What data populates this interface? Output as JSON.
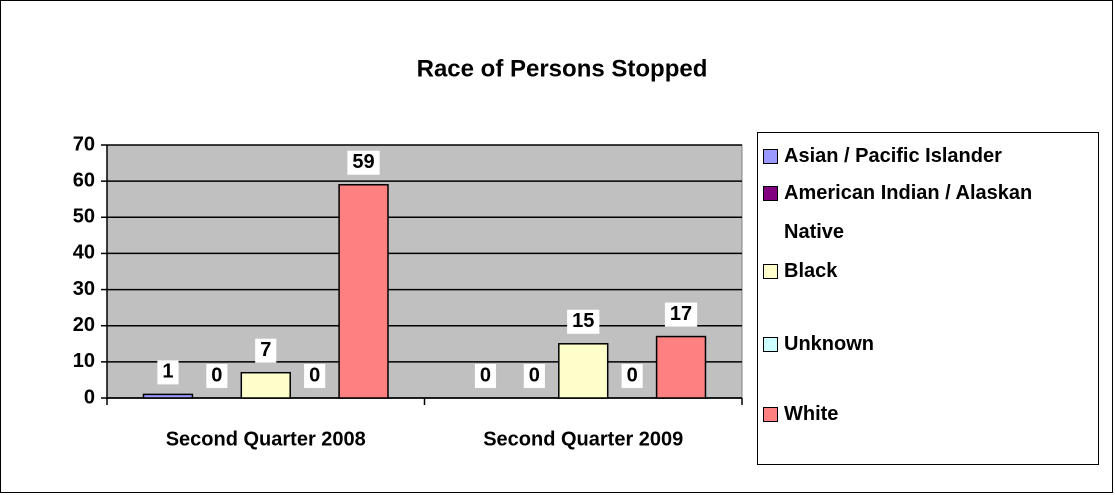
{
  "chart_data": {
    "type": "bar",
    "title": "Race of Persons Stopped",
    "categories": [
      "Second Quarter 2008",
      "Second Quarter 2009"
    ],
    "series": [
      {
        "name": "Asian / Pacific Islander",
        "color": "#9999ff",
        "values": [
          1,
          0
        ]
      },
      {
        "name": "American Indian / Alaskan Native",
        "color": "#800080",
        "values": [
          0,
          0
        ]
      },
      {
        "name": "Black",
        "color": "#ffffcc",
        "values": [
          7,
          15
        ]
      },
      {
        "name": "Unknown",
        "color": "#ccffff",
        "values": [
          0,
          0
        ]
      },
      {
        "name": "White",
        "color": "#ff8080",
        "values": [
          59,
          17
        ]
      }
    ],
    "ylim": [
      0,
      70
    ],
    "yticks": [
      0,
      10,
      20,
      30,
      40,
      50,
      60,
      70
    ],
    "grid": true,
    "legend": "right"
  }
}
